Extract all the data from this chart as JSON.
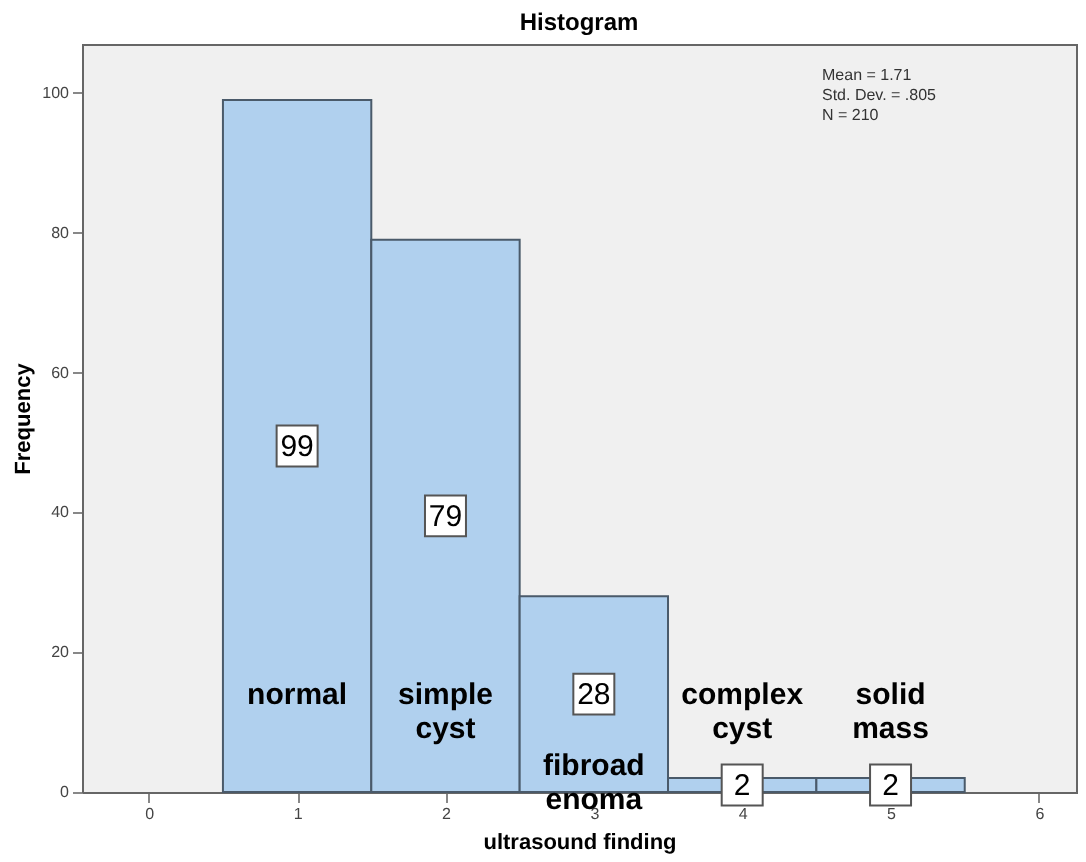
{
  "chart_data": {
    "type": "histogram",
    "title": "Histogram",
    "xlabel": "ultrasound finding",
    "ylabel": "Frequency",
    "bins": [
      0.5,
      1.5,
      2.5,
      3.5,
      4.5,
      5.5
    ],
    "values": [
      99,
      79,
      28,
      2,
      2
    ],
    "color": "#b0d0ee",
    "data_labels": true,
    "xlim": [
      -0.45,
      6.25
    ],
    "ylim": [
      0,
      107
    ],
    "xticks": [
      0,
      1,
      2,
      3,
      4,
      5,
      6
    ],
    "yticks": [
      0,
      20,
      40,
      60,
      80,
      100
    ],
    "grid": false,
    "annotations": [
      "Mean = 1.71\nStd. Dev. = .805\nN = 210",
      "normal",
      "simple\ncyst",
      "fibroad\nenoma",
      "complex\ncyst",
      "solid\nmass"
    ]
  }
}
